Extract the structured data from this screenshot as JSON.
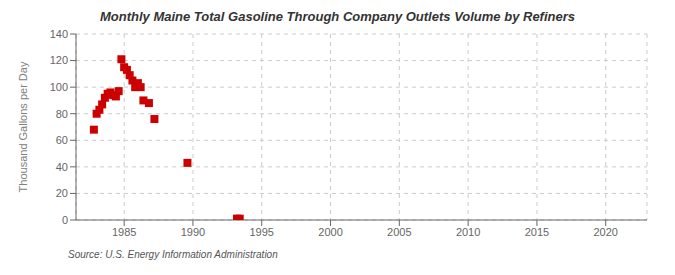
{
  "chart_data": {
    "type": "scatter",
    "title": "Monthly Maine Total Gasoline Through Company Outlets Volume by Refiners",
    "ylabel": "Thousand Gallons per Day",
    "annotations": [
      "Source: U.S. Energy Information Administration"
    ],
    "x": [
      1982.8,
      1983.0,
      1983.2,
      1983.4,
      1983.6,
      1983.8,
      1984.0,
      1984.2,
      1984.4,
      1984.6,
      1984.8,
      1985.0,
      1985.2,
      1985.4,
      1985.6,
      1985.8,
      1986.0,
      1986.2,
      1986.4,
      1986.8,
      1987.2,
      1989.6,
      1993.2,
      1993.4
    ],
    "values": [
      68,
      80,
      83,
      87,
      92,
      95,
      96,
      94,
      93,
      97,
      121,
      115,
      113,
      109,
      105,
      100,
      103,
      100,
      90,
      88,
      76,
      43,
      1,
      1
    ],
    "color": "#cc0000",
    "marker": "square",
    "xlim": [
      1981.5,
      2023
    ],
    "ylim": [
      0,
      140
    ],
    "xticks": [
      1985,
      1990,
      1995,
      2000,
      2005,
      2010,
      2015,
      2020
    ],
    "yticks": [
      0,
      20,
      40,
      60,
      80,
      100,
      120,
      140
    ],
    "grid": true
  }
}
